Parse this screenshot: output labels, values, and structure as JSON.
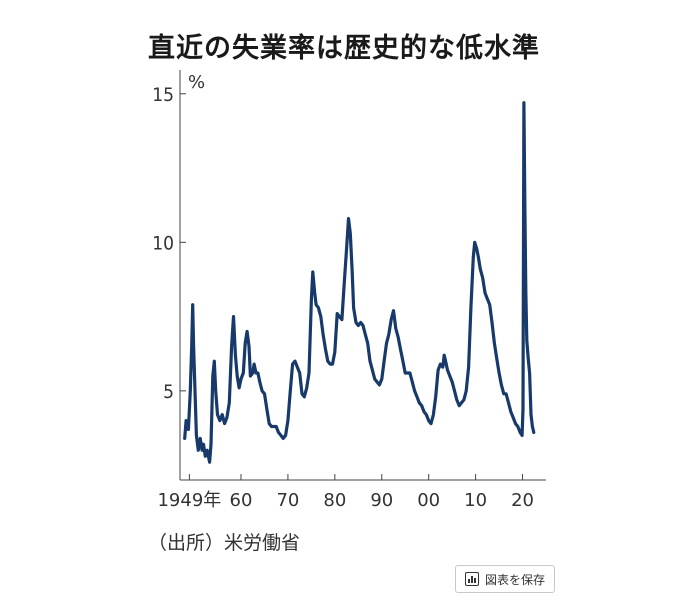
{
  "chart_data": {
    "type": "line",
    "title": "直近の失業率は歴史的な低水準",
    "ylabel": "%",
    "xlabel": "",
    "ylim": [
      2,
      15.8
    ],
    "xlim": [
      1947,
      2025
    ],
    "yticks": [
      5,
      10,
      15
    ],
    "xticks": [
      {
        "value": 1949,
        "label": "1949年"
      },
      {
        "value": 1960,
        "label": "60"
      },
      {
        "value": 1970,
        "label": "70"
      },
      {
        "value": 1980,
        "label": "80"
      },
      {
        "value": 1990,
        "label": "90"
      },
      {
        "value": 2000,
        "label": "00"
      },
      {
        "value": 2010,
        "label": "10"
      },
      {
        "value": 2020,
        "label": "20"
      }
    ],
    "grid": false,
    "color": "#173a6b",
    "series": [
      {
        "name": "",
        "points": [
          [
            1948.0,
            3.4
          ],
          [
            1948.3,
            4.0
          ],
          [
            1948.8,
            3.7
          ],
          [
            1949.2,
            5.0
          ],
          [
            1949.5,
            6.5
          ],
          [
            1949.7,
            7.9
          ],
          [
            1949.9,
            6.5
          ],
          [
            1950.2,
            5.0
          ],
          [
            1950.5,
            3.5
          ],
          [
            1950.9,
            3.0
          ],
          [
            1951.3,
            3.4
          ],
          [
            1951.7,
            3.0
          ],
          [
            1952.0,
            3.2
          ],
          [
            1952.4,
            2.8
          ],
          [
            1952.8,
            3.0
          ],
          [
            1953.3,
            2.6
          ],
          [
            1953.6,
            3.2
          ],
          [
            1954.0,
            5.5
          ],
          [
            1954.3,
            6.0
          ],
          [
            1954.6,
            5.0
          ],
          [
            1955.0,
            4.2
          ],
          [
            1955.5,
            4.0
          ],
          [
            1956.0,
            4.2
          ],
          [
            1956.5,
            3.9
          ],
          [
            1957.0,
            4.1
          ],
          [
            1957.5,
            4.6
          ],
          [
            1958.0,
            6.5
          ],
          [
            1958.4,
            7.5
          ],
          [
            1958.8,
            6.2
          ],
          [
            1959.2,
            5.5
          ],
          [
            1959.6,
            5.1
          ],
          [
            1960.0,
            5.4
          ],
          [
            1960.5,
            5.6
          ],
          [
            1960.9,
            6.6
          ],
          [
            1961.3,
            7.0
          ],
          [
            1961.7,
            6.5
          ],
          [
            1962.0,
            5.5
          ],
          [
            1962.5,
            5.6
          ],
          [
            1962.8,
            5.9
          ],
          [
            1963.2,
            5.6
          ],
          [
            1963.6,
            5.6
          ],
          [
            1964.0,
            5.3
          ],
          [
            1964.5,
            5.0
          ],
          [
            1965.0,
            4.9
          ],
          [
            1965.5,
            4.4
          ],
          [
            1966.0,
            3.9
          ],
          [
            1966.5,
            3.8
          ],
          [
            1967.0,
            3.8
          ],
          [
            1967.5,
            3.8
          ],
          [
            1968.0,
            3.6
          ],
          [
            1968.5,
            3.5
          ],
          [
            1969.0,
            3.4
          ],
          [
            1969.5,
            3.5
          ],
          [
            1970.0,
            4.0
          ],
          [
            1970.5,
            5.0
          ],
          [
            1971.0,
            5.9
          ],
          [
            1971.5,
            6.0
          ],
          [
            1972.0,
            5.8
          ],
          [
            1972.5,
            5.6
          ],
          [
            1973.0,
            4.9
          ],
          [
            1973.5,
            4.8
          ],
          [
            1974.0,
            5.1
          ],
          [
            1974.5,
            5.6
          ],
          [
            1975.0,
            8.1
          ],
          [
            1975.3,
            9.0
          ],
          [
            1975.7,
            8.3
          ],
          [
            1976.0,
            7.9
          ],
          [
            1976.5,
            7.8
          ],
          [
            1977.0,
            7.5
          ],
          [
            1977.5,
            6.9
          ],
          [
            1978.0,
            6.4
          ],
          [
            1978.5,
            6.0
          ],
          [
            1979.0,
            5.9
          ],
          [
            1979.5,
            5.9
          ],
          [
            1980.0,
            6.3
          ],
          [
            1980.5,
            7.6
          ],
          [
            1981.0,
            7.5
          ],
          [
            1981.5,
            7.4
          ],
          [
            1982.0,
            8.6
          ],
          [
            1982.5,
            9.8
          ],
          [
            1982.9,
            10.8
          ],
          [
            1983.3,
            10.3
          ],
          [
            1983.7,
            9.0
          ],
          [
            1984.0,
            7.8
          ],
          [
            1984.5,
            7.3
          ],
          [
            1985.0,
            7.2
          ],
          [
            1985.5,
            7.3
          ],
          [
            1986.0,
            7.2
          ],
          [
            1986.5,
            6.9
          ],
          [
            1987.0,
            6.6
          ],
          [
            1987.5,
            6.0
          ],
          [
            1988.0,
            5.7
          ],
          [
            1988.5,
            5.4
          ],
          [
            1989.0,
            5.3
          ],
          [
            1989.5,
            5.2
          ],
          [
            1990.0,
            5.4
          ],
          [
            1990.5,
            6.0
          ],
          [
            1991.0,
            6.6
          ],
          [
            1991.5,
            6.9
          ],
          [
            1992.0,
            7.4
          ],
          [
            1992.5,
            7.7
          ],
          [
            1993.0,
            7.1
          ],
          [
            1993.5,
            6.8
          ],
          [
            1994.0,
            6.4
          ],
          [
            1994.5,
            6.0
          ],
          [
            1995.0,
            5.6
          ],
          [
            1995.5,
            5.6
          ],
          [
            1996.0,
            5.6
          ],
          [
            1996.5,
            5.3
          ],
          [
            1997.0,
            5.0
          ],
          [
            1997.5,
            4.8
          ],
          [
            1998.0,
            4.6
          ],
          [
            1998.5,
            4.5
          ],
          [
            1999.0,
            4.3
          ],
          [
            1999.5,
            4.2
          ],
          [
            2000.0,
            4.0
          ],
          [
            2000.5,
            3.9
          ],
          [
            2001.0,
            4.2
          ],
          [
            2001.5,
            4.8
          ],
          [
            2002.0,
            5.7
          ],
          [
            2002.5,
            5.9
          ],
          [
            2003.0,
            5.8
          ],
          [
            2003.3,
            6.2
          ],
          [
            2003.6,
            6.0
          ],
          [
            2004.0,
            5.7
          ],
          [
            2004.5,
            5.5
          ],
          [
            2005.0,
            5.3
          ],
          [
            2005.5,
            5.0
          ],
          [
            2006.0,
            4.7
          ],
          [
            2006.5,
            4.5
          ],
          [
            2007.0,
            4.6
          ],
          [
            2007.5,
            4.7
          ],
          [
            2008.0,
            5.0
          ],
          [
            2008.5,
            5.8
          ],
          [
            2009.0,
            7.8
          ],
          [
            2009.5,
            9.5
          ],
          [
            2009.8,
            10.0
          ],
          [
            2010.2,
            9.8
          ],
          [
            2010.6,
            9.5
          ],
          [
            2011.0,
            9.1
          ],
          [
            2011.5,
            8.8
          ],
          [
            2012.0,
            8.3
          ],
          [
            2012.5,
            8.1
          ],
          [
            2013.0,
            7.9
          ],
          [
            2013.5,
            7.3
          ],
          [
            2014.0,
            6.6
          ],
          [
            2014.5,
            6.1
          ],
          [
            2015.0,
            5.6
          ],
          [
            2015.5,
            5.2
          ],
          [
            2016.0,
            4.9
          ],
          [
            2016.5,
            4.9
          ],
          [
            2017.0,
            4.6
          ],
          [
            2017.5,
            4.3
          ],
          [
            2018.0,
            4.1
          ],
          [
            2018.5,
            3.9
          ],
          [
            2019.0,
            3.8
          ],
          [
            2019.5,
            3.6
          ],
          [
            2019.9,
            3.5
          ],
          [
            2020.1,
            4.4
          ],
          [
            2020.3,
            14.7
          ],
          [
            2020.5,
            11.1
          ],
          [
            2020.7,
            8.4
          ],
          [
            2020.9,
            6.7
          ],
          [
            2021.2,
            6.1
          ],
          [
            2021.5,
            5.6
          ],
          [
            2021.8,
            4.2
          ],
          [
            2022.1,
            3.8
          ],
          [
            2022.4,
            3.6
          ]
        ]
      }
    ]
  },
  "source": "（出所）米労働省",
  "save_button": {
    "label": "図表を保存",
    "icon": "bar-chart-icon"
  }
}
